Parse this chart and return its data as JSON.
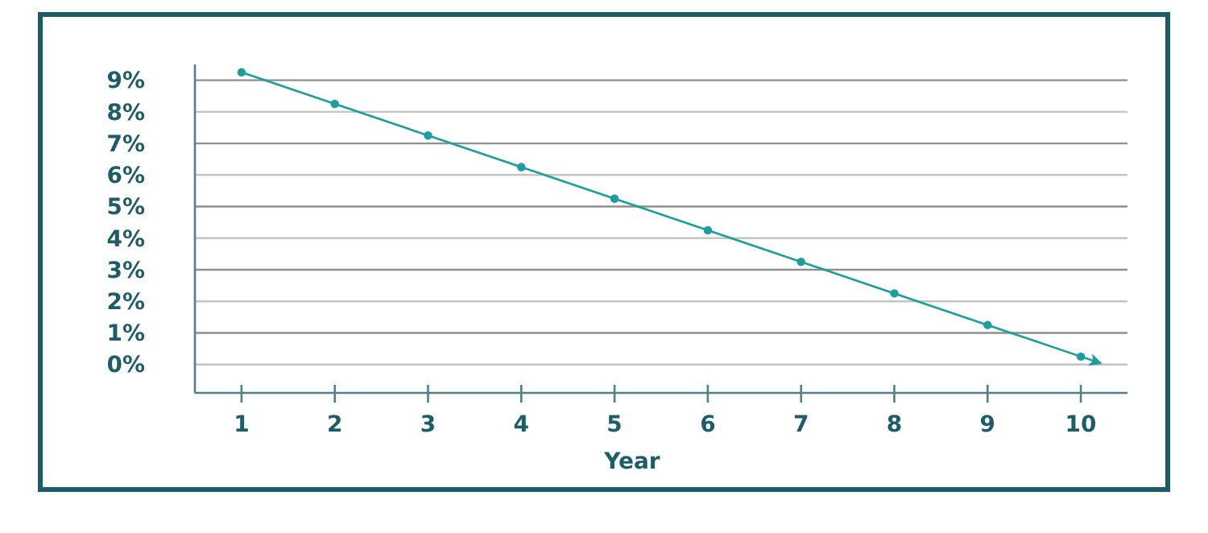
{
  "chart_data": {
    "type": "line",
    "xlabel": "Year",
    "x": [
      1,
      2,
      3,
      4,
      5,
      6,
      7,
      8,
      9,
      10
    ],
    "series": [
      {
        "color": "#1a9e9e",
        "values": [
          9.25,
          8.25,
          7.25,
          6.25,
          5.25,
          4.25,
          3.25,
          2.25,
          1.25,
          0.25
        ]
      }
    ],
    "xlim": [
      0.5,
      10.5
    ],
    "xticks": [
      1,
      2,
      3,
      4,
      5,
      6,
      7,
      8,
      9,
      10
    ],
    "ylim": [
      -0.9,
      9.5
    ],
    "yticks": [
      {
        "value": 0,
        "label": "0%"
      },
      {
        "value": 1,
        "label": "1%"
      },
      {
        "value": 2,
        "label": "2%"
      },
      {
        "value": 3,
        "label": "3%"
      },
      {
        "value": 4,
        "label": "4%"
      },
      {
        "value": 5,
        "label": "5%"
      },
      {
        "value": 6,
        "label": "6%"
      },
      {
        "value": 7,
        "label": "7%"
      },
      {
        "value": 8,
        "label": "8%"
      },
      {
        "value": 9,
        "label": "9%"
      }
    ],
    "grid": "y",
    "marker": "circle",
    "line_style": "solid"
  }
}
